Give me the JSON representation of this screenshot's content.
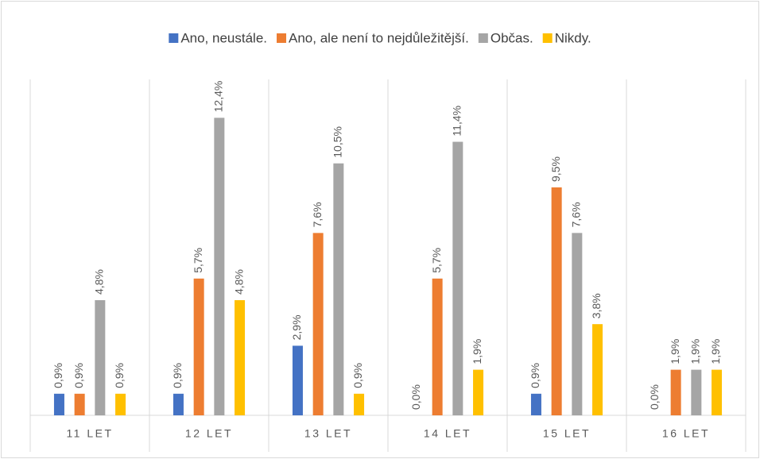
{
  "chart_data": {
    "type": "bar",
    "categories": [
      "11 LET",
      "12 LET",
      "13 LET",
      "14 LET",
      "15 LET",
      "16 LET"
    ],
    "series": [
      {
        "name": "Ano, neustále.",
        "color": "#4472c4",
        "values": [
          0.9,
          0.9,
          2.9,
          0.0,
          0.9,
          0.0
        ],
        "value_labels": [
          "0,9%",
          "0,9%",
          "2,9%",
          "0,0%",
          "0,9%",
          "0,0%"
        ]
      },
      {
        "name": "Ano, ale není to nejdůležitější.",
        "color": "#ed7d31",
        "values": [
          0.9,
          5.7,
          7.6,
          5.7,
          9.5,
          1.9
        ],
        "value_labels": [
          "0,9%",
          "5,7%",
          "7,6%",
          "5,7%",
          "9,5%",
          "1,9%"
        ]
      },
      {
        "name": "Občas.",
        "color": "#a5a5a5",
        "values": [
          4.8,
          12.4,
          10.5,
          11.4,
          7.6,
          1.9
        ],
        "value_labels": [
          "4,8%",
          "12,4%",
          "10,5%",
          "11,4%",
          "7,6%",
          "1,9%"
        ]
      },
      {
        "name": "Nikdy.",
        "color": "#ffc000",
        "values": [
          0.9,
          4.8,
          0.9,
          1.9,
          3.8,
          1.9
        ],
        "value_labels": [
          "0,9%",
          "4,8%",
          "0,9%",
          "1,9%",
          "3,8%",
          "1,9%"
        ]
      }
    ],
    "ylim": [
      0,
      14
    ],
    "legend": "top"
  }
}
